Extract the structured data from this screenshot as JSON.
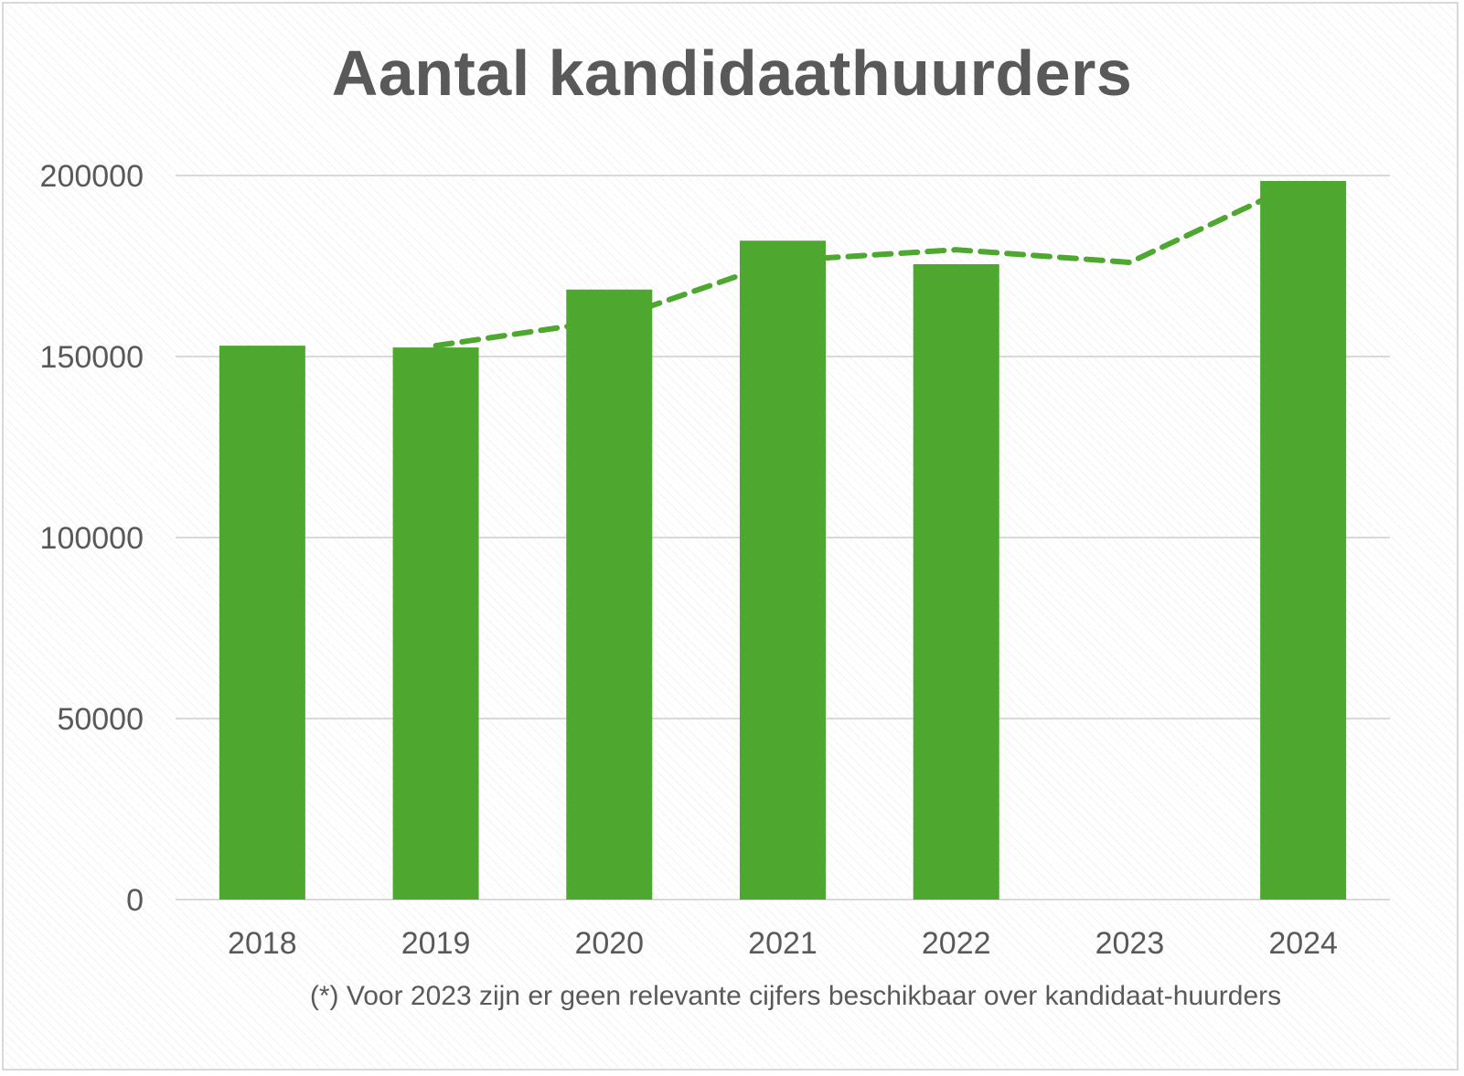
{
  "chart_data": {
    "type": "bar",
    "title": "Aantal kandidaathuurders",
    "categories": [
      "2018",
      "2019",
      "2020",
      "2021",
      "2022",
      "2023",
      "2024"
    ],
    "series": [
      {
        "type": "bar",
        "values": [
          153000,
          152500,
          168500,
          182000,
          175500,
          null,
          198500
        ],
        "color": "#4ea72e"
      },
      {
        "type": "line",
        "style": "dashed",
        "values": [
          null,
          153000,
          160000,
          176500,
          179500,
          176000,
          198500
        ],
        "color": "#4ea72e"
      }
    ],
    "ylim": [
      0,
      200000
    ],
    "yticks": [
      "0",
      "50000",
      "100000",
      "150000",
      "200000"
    ],
    "grid": true,
    "legend": "none",
    "footnote": "(*) Voor 2023 zijn er geen relevante cijfers beschikbaar over kandidaat-huurders"
  }
}
